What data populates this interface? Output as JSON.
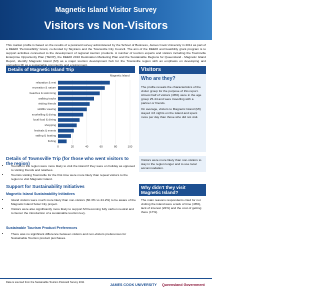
{
  "header": {
    "title": "Magnetic Island Visitor Survey",
    "subtitle": "Visitors vs Non-Visitors"
  },
  "intro": "This market profile is based on the results of a postcard survey administered by the School of Business, James Cook University in 2011 as part of a DEEDI 'Permissibility' Grant, co-funded by Skytrans and the Townsville City Council. The aim of the DEEDI and feasibility grant program is to support activities connected to the development of regional tourism products. A number of tourism experts and visitors including the Townsville Enterprise Opportunity Plan (TEOP), the DEEDI 2010 Destination Marketing Plan and the Sustainable Regions for Queensland - Magnetic Island Report, identify Magnetic Island (MI) as a major tourism development hub for the Townsville region with an emphasis on developing and upgrading MI as a sustainable community and environment.",
  "trip": {
    "heading": "Details of Magnetic Island Trip",
    "chart": {
      "type": "bar",
      "orientation": "horizontal",
      "series_name": "Magnetic Island",
      "color": "#1d4f91",
      "categories": [
        "relaxation & rest",
        "recreation & nature",
        "beaches & swimming",
        "walking tracks",
        "visiting friends",
        "wildlife viewing",
        "snorkelling & diving",
        "local food & dining",
        "shopping",
        "festivals & events",
        "sailing & boating",
        "fishing"
      ],
      "values": [
        72,
        65,
        58,
        50,
        44,
        40,
        35,
        30,
        26,
        22,
        18,
        12
      ],
      "xlim": [
        0,
        100
      ],
      "xticks": [
        0,
        20,
        40,
        60,
        80,
        100
      ]
    }
  },
  "visitors": {
    "label": "Visitors",
    "heading": "Who are they?",
    "paragraphs": [
      "The profile reveals the characteristics of the visitor group for the purpose of this report. Almost half of visitors (48%) were in the age group 25-44 and were travelling with a partner or friends.",
      "On average, visitors to Magnetic Island (MI) stayed 4.6 nights on the island and spent more per day than those who did not visit."
    ]
  },
  "townsville": {
    "heading": "Details of Townsville Trip (for those who went visitors to the region)",
    "bullets": [
      "Tourists in the region were more likely to visit the island if they were on holiday as opposed to visiting friends and relatives.",
      "Tourists visiting Townsville for the first time were more likely than repeat visitors to the region to visit Magnetic Island."
    ]
  },
  "townsville_side": "Visitors were more likely than non-visitors to stay in the region longer and to use local accommodation.",
  "support": {
    "heading": "Support for Sustainability Initiatives",
    "sub1": "Magnetic Island Sustainability Initiatives",
    "bullets1": [
      "Island visitors were much more likely than non-visitors (60.3% vs 44.2%) to be aware of the Magnetic Island Solar City project.",
      "Visitors were also significantly more likely to support MI becoming fully carbon neutral and to favour the introduction of a sustainable tourism levy."
    ],
    "sub2": "Sustainable Tourism Product Preferences",
    "bullets2": [
      "There was no significant difference between visitors and non-visitors preferences for Sustainable Tourism product purchases."
    ]
  },
  "why": {
    "heading": "Why didn't they visit Magnetic Island?",
    "text": "The main reasons respondents cited for not visiting the island were a lack of time (48%), lack of interest (22%) and the cost of getting there (17%)."
  },
  "footer": {
    "note": "Data is sourced from the Sustainable Tourism Postcard Survey 2011",
    "logo1": "JAMES COOK UNIVERSITY",
    "logo2": "Queensland Government"
  }
}
